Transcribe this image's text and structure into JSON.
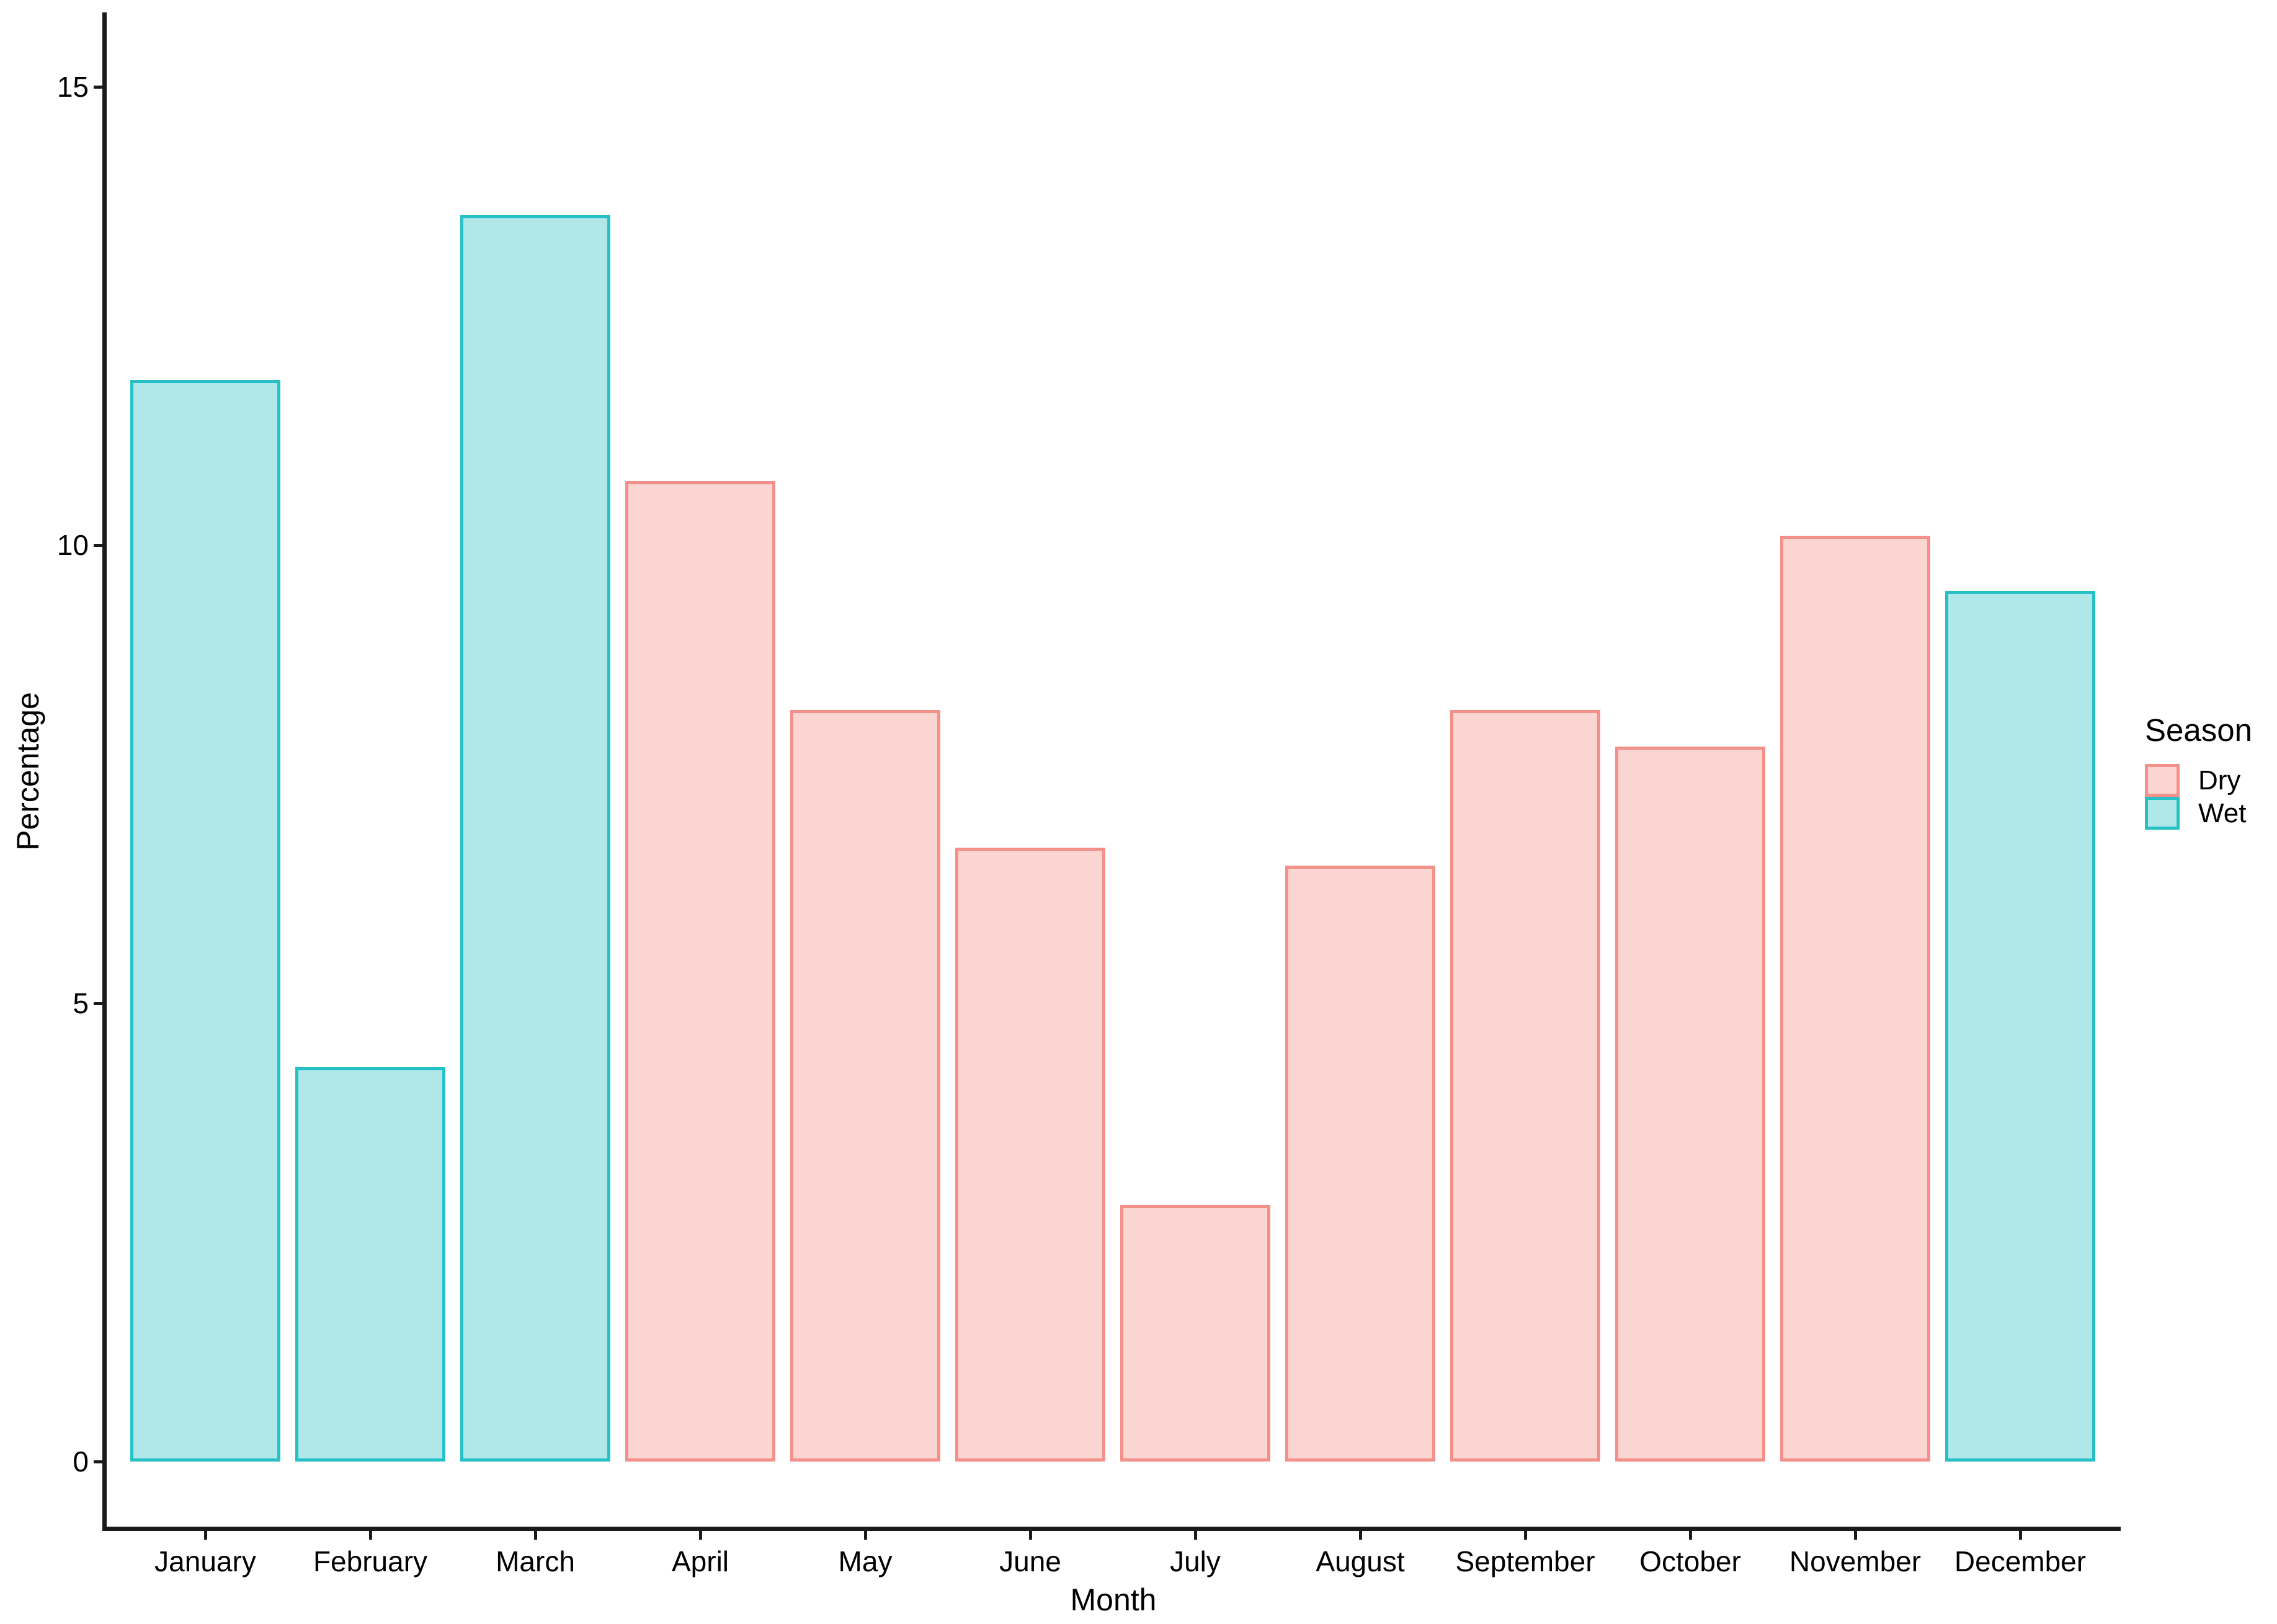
{
  "chart_data": {
    "type": "bar",
    "title": "",
    "xlabel": "Month",
    "ylabel": "Percentage",
    "categories": [
      "January",
      "February",
      "March",
      "April",
      "May",
      "June",
      "July",
      "August",
      "September",
      "October",
      "November",
      "December"
    ],
    "values": [
      11.8,
      4.3,
      13.6,
      10.7,
      8.2,
      6.7,
      2.8,
      6.5,
      8.2,
      7.8,
      10.1,
      9.5
    ],
    "series_season": [
      "Wet",
      "Wet",
      "Wet",
      "Dry",
      "Dry",
      "Dry",
      "Dry",
      "Dry",
      "Dry",
      "Dry",
      "Dry",
      "Wet"
    ],
    "y_ticks": [
      0,
      5,
      10,
      15
    ],
    "ylim": [
      0,
      15.8
    ],
    "grid": false,
    "legend": {
      "title": "Season",
      "position": "right",
      "entries": [
        {
          "label": "Dry",
          "fill": "#FBD5D1",
          "border": "#F4908A"
        },
        {
          "label": "Wet",
          "fill": "#B0E8E9",
          "border": "#26C1C6"
        }
      ]
    }
  },
  "axes": {
    "x_title": "Month",
    "y_title": "Percentage"
  },
  "colors": {
    "axis": "#1A1A1A",
    "text": "#000000",
    "background": "#FFFFFF"
  }
}
